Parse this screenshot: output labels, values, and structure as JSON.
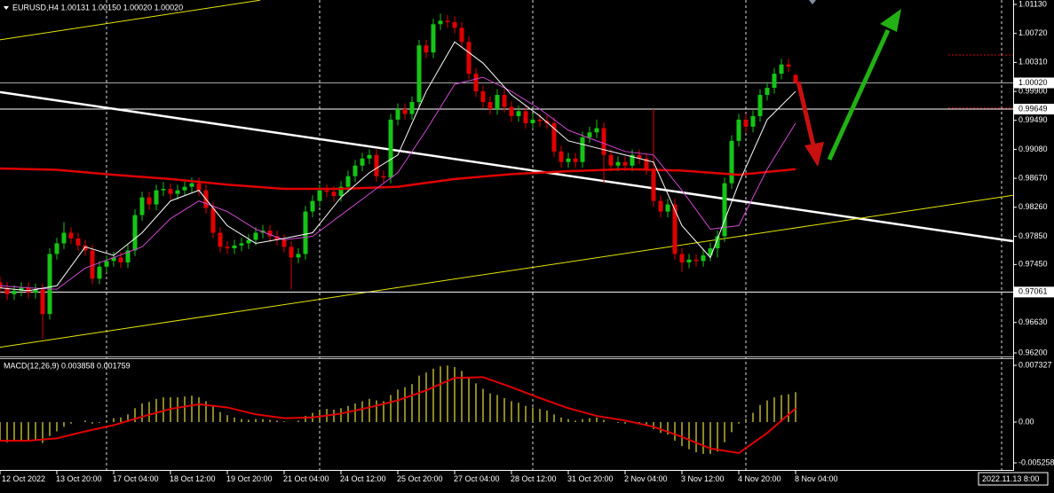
{
  "chart_data": [
    {
      "type": "candlestick",
      "title": "EURUSD,H4  1.00131 1.00150 1.00020 1.00020",
      "categories": [
        "12 Oct 2022",
        null,
        null,
        null,
        null,
        null,
        null,
        null,
        "13 Oct 20:00",
        null,
        null,
        null,
        null,
        null,
        null,
        null,
        "17 Oct 04:00",
        null,
        null,
        null,
        null,
        null,
        null,
        null,
        "18 Oct 12:00",
        null,
        null,
        null,
        null,
        null,
        null,
        null,
        "19 Oct 20:00",
        null,
        null,
        null,
        null,
        null,
        null,
        null,
        "21 Oct 04:00",
        null,
        null,
        null,
        null,
        null,
        null,
        null,
        "24 Oct 12:00",
        null,
        null,
        null,
        null,
        null,
        null,
        null,
        "25 Oct 20:00",
        null,
        null,
        null,
        null,
        null,
        null,
        null,
        "27 Oct 04:00",
        null,
        null,
        null,
        null,
        null,
        null,
        null,
        "28 Oct 12:00",
        null,
        null,
        null,
        null,
        null,
        null,
        null,
        "31 Oct 20:00",
        null,
        null,
        null,
        null,
        null,
        null,
        null,
        "2 Nov 04:00",
        null,
        null,
        null,
        null,
        null,
        null,
        null,
        "3 Nov 12:00",
        null,
        null,
        null,
        null,
        null,
        null,
        null,
        "4 Nov 20:00",
        null,
        null,
        null,
        null,
        null,
        null,
        null,
        "8 Nov 04:00"
      ],
      "open": [
        0.972,
        0.9712,
        0.9703,
        0.9708,
        0.9712,
        0.9705,
        0.971,
        0.9675,
        0.976,
        0.9775,
        0.979,
        0.9782,
        0.9772,
        0.9765,
        0.9725,
        0.9742,
        0.975,
        0.9755,
        0.9748,
        0.9765,
        0.9815,
        0.984,
        0.983,
        0.985,
        0.9852,
        0.9845,
        0.985,
        0.9855,
        0.986,
        0.985,
        0.9825,
        0.979,
        0.977,
        0.9768,
        0.9772,
        0.9775,
        0.978,
        0.979,
        0.9793,
        0.9785,
        0.978,
        0.977,
        0.9755,
        0.976,
        0.982,
        0.9835,
        0.985,
        0.9848,
        0.9842,
        0.9855,
        0.987,
        0.9885,
        0.9895,
        0.99,
        0.987,
        0.9868,
        0.995,
        0.9965,
        0.9958,
        0.9975,
        1.0055,
        1.0045,
        1.0085,
        1.009,
        1.0088,
        1.008,
        1.006,
        1.0015,
        0.999,
        0.9975,
        0.9965,
        0.9985,
        0.9968,
        0.9955,
        0.9962,
        0.9945,
        0.995,
        0.9948,
        0.9945,
        0.9905,
        0.989,
        0.9895,
        0.989,
        0.9925,
        0.9932,
        0.9938,
        0.99,
        0.9885,
        0.989,
        0.9885,
        0.99,
        0.9895,
        0.988,
        0.9835,
        0.982,
        0.983,
        0.976,
        0.9748,
        0.9752,
        0.975,
        0.9758,
        0.9768,
        0.9785,
        0.986,
        0.992,
        0.995,
        0.994,
        0.9955,
        0.9985,
        0.9995,
        1.0015,
        1.0028,
        1.00131
      ],
      "high": [
        0.9728,
        0.972,
        0.9716,
        0.972,
        0.972,
        0.9718,
        0.9718,
        0.9768,
        0.9783,
        0.9805,
        0.9798,
        0.979,
        0.978,
        0.9773,
        0.975,
        0.9758,
        0.9763,
        0.9763,
        0.9773,
        0.9823,
        0.9848,
        0.9848,
        0.9858,
        0.9862,
        0.986,
        0.9858,
        0.9863,
        0.9868,
        0.9868,
        0.9858,
        0.9833,
        0.9798,
        0.9778,
        0.978,
        0.9783,
        0.9788,
        0.9798,
        0.9801,
        0.9801,
        0.9793,
        0.9788,
        0.9778,
        0.9768,
        0.9828,
        0.9843,
        0.9858,
        0.9858,
        0.9856,
        0.9863,
        0.9878,
        0.9893,
        0.9903,
        0.9908,
        0.9908,
        0.9878,
        0.9958,
        0.9973,
        0.9973,
        0.9983,
        1.0063,
        1.0063,
        1.0093,
        1.01,
        1.0098,
        1.0096,
        1.0088,
        1.0068,
        1.0023,
        0.9998,
        0.9983,
        0.9993,
        0.9993,
        0.9976,
        0.997,
        0.997,
        0.9958,
        0.9958,
        0.9956,
        0.9953,
        0.9913,
        0.9903,
        0.9903,
        0.9933,
        0.994,
        0.995,
        0.9946,
        0.9908,
        0.9898,
        0.9898,
        0.9908,
        0.9908,
        0.9903,
        0.9965,
        0.9843,
        0.9838,
        0.9838,
        0.9768,
        0.976,
        0.976,
        0.9766,
        0.9776,
        0.9793,
        0.9868,
        0.9928,
        0.9958,
        0.9958,
        0.9963,
        0.9993,
        1.0003,
        1.0023,
        1.0036,
        1.0036,
        1.0015
      ],
      "low": [
        0.9704,
        0.9695,
        0.9695,
        0.97,
        0.9697,
        0.9697,
        0.964,
        0.9667,
        0.9752,
        0.9767,
        0.9774,
        0.9764,
        0.9757,
        0.9717,
        0.9717,
        0.9734,
        0.9742,
        0.974,
        0.974,
        0.9757,
        0.9807,
        0.9822,
        0.9822,
        0.9842,
        0.9837,
        0.9837,
        0.9842,
        0.9847,
        0.9842,
        0.9817,
        0.9782,
        0.9762,
        0.976,
        0.976,
        0.9764,
        0.9767,
        0.9772,
        0.9782,
        0.9777,
        0.9772,
        0.9762,
        0.971,
        0.9747,
        0.9752,
        0.9812,
        0.9827,
        0.984,
        0.9834,
        0.9834,
        0.9847,
        0.9862,
        0.9877,
        0.9887,
        0.9862,
        0.986,
        0.986,
        0.9942,
        0.995,
        0.995,
        0.9967,
        1.0037,
        1.0037,
        1.0077,
        1.008,
        1.0072,
        1.0052,
        1.0007,
        0.9982,
        0.9967,
        0.9957,
        0.9957,
        0.996,
        0.9947,
        0.9947,
        0.9937,
        0.9937,
        0.994,
        0.9937,
        0.9897,
        0.9882,
        0.9882,
        0.9882,
        0.9882,
        0.9917,
        0.9924,
        0.986,
        0.9877,
        0.9877,
        0.9877,
        0.9877,
        0.9887,
        0.9872,
        0.9827,
        0.9812,
        0.9812,
        0.9752,
        0.9735,
        0.974,
        0.9742,
        0.9742,
        0.975,
        0.9755,
        0.9777,
        0.9852,
        0.9912,
        0.9932,
        0.9932,
        0.9947,
        0.9977,
        0.9987,
        1.0007,
        1.0017,
        1.0002
      ],
      "close": [
        0.9712,
        0.9703,
        0.9708,
        0.9712,
        0.9705,
        0.971,
        0.9675,
        0.976,
        0.9775,
        0.979,
        0.9782,
        0.9772,
        0.9765,
        0.9725,
        0.9742,
        0.975,
        0.9755,
        0.9748,
        0.9765,
        0.9815,
        0.984,
        0.983,
        0.985,
        0.9852,
        0.9845,
        0.985,
        0.9855,
        0.986,
        0.985,
        0.9825,
        0.979,
        0.977,
        0.9768,
        0.9772,
        0.9775,
        0.978,
        0.979,
        0.9793,
        0.9785,
        0.978,
        0.977,
        0.9755,
        0.976,
        0.982,
        0.9835,
        0.985,
        0.9848,
        0.9842,
        0.9855,
        0.987,
        0.9885,
        0.9895,
        0.99,
        0.987,
        0.9868,
        0.995,
        0.9965,
        0.9958,
        0.9975,
        1.0055,
        1.0045,
        1.0085,
        1.009,
        1.0088,
        1.008,
        1.006,
        1.0015,
        0.999,
        0.9975,
        0.9965,
        0.9985,
        0.9968,
        0.9955,
        0.9962,
        0.9945,
        0.995,
        0.9948,
        0.9945,
        0.9905,
        0.989,
        0.9895,
        0.989,
        0.9925,
        0.9932,
        0.9938,
        0.99,
        0.9885,
        0.989,
        0.9885,
        0.99,
        0.9895,
        0.988,
        0.9835,
        0.982,
        0.983,
        0.976,
        0.9748,
        0.9752,
        0.975,
        0.9758,
        0.9768,
        0.9785,
        0.986,
        0.992,
        0.995,
        0.994,
        0.9955,
        0.9985,
        0.9995,
        1.0015,
        1.0028,
        1.0025,
        1.0002
      ],
      "up_color": "#16c416",
      "down_color": "#e00000",
      "ylim": [
        0.962,
        1.0113
      ],
      "yticks": [
        {
          "value": 1.0113,
          "label": "1.01130"
        },
        {
          "value": 1.0072,
          "label": "1.00720"
        },
        {
          "value": 1.0031,
          "label": "1.00310"
        },
        {
          "value": 0.999,
          "label": "0.99900"
        },
        {
          "value": 0.9949,
          "label": "0.99490"
        },
        {
          "value": 0.9908,
          "label": "0.99080"
        },
        {
          "value": 0.9867,
          "label": "0.98670"
        },
        {
          "value": 0.9826,
          "label": "0.98260"
        },
        {
          "value": 0.9785,
          "label": "0.97850"
        },
        {
          "value": 0.9745,
          "label": "0.97450"
        },
        {
          "value": 0.9663,
          "label": "0.96630"
        },
        {
          "value": 0.962,
          "label": "0.96200"
        }
      ],
      "price_lines": [
        {
          "value": 1.0002,
          "label": "1.00020",
          "color": "#a8a8a8"
        },
        {
          "value": 0.99649,
          "label": "0.99649",
          "color": "#ffffff"
        },
        {
          "value": 0.97061,
          "label": "0.97061",
          "color": "#ffffff"
        }
      ],
      "moving_averages": [
        {
          "color": "#e00000",
          "width": 2.5,
          "x": [
            0,
            8,
            16,
            24,
            32,
            40,
            48,
            56,
            64,
            72,
            80,
            88,
            96,
            104,
            112
          ],
          "values": [
            0.9881,
            0.9879,
            0.9872,
            0.9866,
            0.9858,
            0.9852,
            0.9852,
            0.9855,
            0.9866,
            0.9873,
            0.9877,
            0.988,
            0.9878,
            0.9872,
            0.988
          ]
        },
        {
          "color": "#d048d0",
          "width": 1,
          "x": [
            0,
            4,
            8,
            12,
            16,
            20,
            24,
            28,
            32,
            36,
            40,
            44,
            48,
            52,
            56,
            60,
            64,
            68,
            72,
            76,
            80,
            84,
            88,
            92,
            96,
            100,
            104,
            108,
            112
          ],
          "values": [
            0.9715,
            0.9712,
            0.971,
            0.974,
            0.9755,
            0.977,
            0.981,
            0.9835,
            0.982,
            0.9795,
            0.978,
            0.9785,
            0.9815,
            0.9845,
            0.9875,
            0.9935,
            1.0,
            1.001,
            0.999,
            0.9965,
            0.9935,
            0.992,
            0.9905,
            0.99,
            0.985,
            0.9795,
            0.98,
            0.988,
            0.9945
          ]
        },
        {
          "color": "#ffffff",
          "width": 1,
          "x": [
            0,
            4,
            8,
            12,
            16,
            20,
            24,
            28,
            32,
            36,
            40,
            44,
            48,
            52,
            56,
            60,
            64,
            68,
            72,
            76,
            80,
            84,
            88,
            92,
            96,
            100,
            104,
            108,
            112
          ],
          "values": [
            0.9712,
            0.9708,
            0.9715,
            0.977,
            0.9758,
            0.979,
            0.9835,
            0.985,
            0.98,
            0.9775,
            0.9782,
            0.979,
            0.984,
            0.9875,
            0.99,
            0.999,
            1.006,
            1.003,
            0.9985,
            0.9955,
            0.992,
            0.991,
            0.99,
            0.989,
            0.98,
            0.9755,
            0.986,
            0.995,
            0.999
          ]
        }
      ],
      "trendlines": [
        {
          "color": "#ffffff",
          "width": 2.5,
          "x": [
            0,
            142.6
          ],
          "values": [
            0.9989,
            0.9778
          ]
        },
        {
          "color": "#e6e600",
          "width": 1,
          "x": [
            0,
            142.6
          ],
          "values": [
            0.9628,
            0.9843
          ]
        },
        {
          "color": "#e6e600",
          "width": 1,
          "x": [
            0,
            36.6
          ],
          "values": [
            1.0063,
            1.0119
          ]
        }
      ],
      "xgrid": [
        15,
        45,
        75,
        105
      ],
      "cursor": {
        "label": "2022.11.13 8:00",
        "x": 141
      }
    },
    {
      "type": "macd",
      "title": "MACD(12,26,9) 0.003858 0.001759",
      "color": "#e8e040",
      "values": [
        -0.0025,
        -0.0026,
        -0.0025,
        -0.0024,
        -0.0024,
        -0.0023,
        -0.0027,
        -0.0018,
        -0.0012,
        -0.0006,
        -0.0002,
        0.0,
        0.0002,
        -0.0002,
        -0.0001,
        0.0002,
        0.0005,
        0.0006,
        0.001,
        0.0018,
        0.0024,
        0.0026,
        0.003,
        0.0032,
        0.0032,
        0.0032,
        0.0033,
        0.0034,
        0.0032,
        0.0027,
        0.002,
        0.0013,
        0.0009,
        0.0006,
        0.0004,
        0.0003,
        0.0004,
        0.0004,
        0.0003,
        0.0002,
        0.0001,
        0.0,
        0.0002,
        0.0008,
        0.0012,
        0.0016,
        0.0017,
        0.0016,
        0.0018,
        0.0021,
        0.0024,
        0.0027,
        0.003,
        0.0028,
        0.0027,
        0.0035,
        0.0042,
        0.0045,
        0.0049,
        0.006,
        0.0064,
        0.0069,
        0.0072,
        0.0073,
        0.0071,
        0.0066,
        0.0058,
        0.005,
        0.0043,
        0.0037,
        0.0035,
        0.0031,
        0.0027,
        0.0025,
        0.0021,
        0.0019,
        0.0017,
        0.0015,
        0.001,
        0.0006,
        0.0004,
        0.0002,
        0.0004,
        0.0005,
        0.0006,
        0.0003,
        0.0,
        -0.0001,
        -0.0002,
        -0.0001,
        -0.0002,
        -0.0004,
        -0.0009,
        -0.0014,
        -0.0016,
        -0.0024,
        -0.0031,
        -0.0035,
        -0.0039,
        -0.0041,
        -0.0041,
        -0.0038,
        -0.0026,
        -0.0013,
        -0.0002,
        0.0004,
        0.0012,
        0.0022,
        0.0028,
        0.0032,
        0.0035,
        0.0036,
        0.003858
      ],
      "signal": {
        "color": "#e00000",
        "x": [
          0,
          4,
          8,
          12,
          16,
          20,
          24,
          28,
          32,
          36,
          40,
          44,
          48,
          52,
          56,
          60,
          64,
          68,
          72,
          76,
          80,
          84,
          88,
          92,
          96,
          100,
          104,
          108,
          112
        ],
        "values": [
          -0.0024,
          -0.0024,
          -0.0021,
          -0.0012,
          -0.0004,
          0.0007,
          0.0017,
          0.0023,
          0.0019,
          0.001,
          0.0005,
          0.0006,
          0.0011,
          0.0019,
          0.0028,
          0.0041,
          0.0057,
          0.0058,
          0.0045,
          0.0031,
          0.0018,
          0.0008,
          0.0002,
          -0.0006,
          -0.0019,
          -0.0034,
          -0.004,
          -0.0014,
          0.001759
        ]
      },
      "ylim": [
        -0.005258,
        0.007327
      ],
      "yticks": [
        0.007327,
        {
          "value": 0,
          "label": "0.00"
        },
        -0.005258
      ]
    }
  ]
}
